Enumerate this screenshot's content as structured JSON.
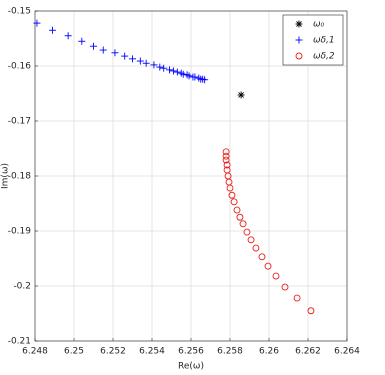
{
  "chart_data": {
    "type": "scatter",
    "xlabel": "Re(ω)",
    "ylabel": "Im(ω)",
    "xlim": [
      6.248,
      6.264
    ],
    "ylim": [
      -0.21,
      -0.15
    ],
    "xticks": [
      6.248,
      6.25,
      6.252,
      6.254,
      6.256,
      6.258,
      6.26,
      6.262,
      6.264
    ],
    "yticks": [
      -0.21,
      -0.2,
      -0.19,
      -0.18,
      -0.17,
      -0.16,
      -0.15
    ],
    "grid": true,
    "legend": "northeast",
    "series": [
      {
        "name": "ω₀",
        "color": "#000000",
        "marker": "asterisk",
        "x": [
          6.25857
        ],
        "y": [
          -0.16527
        ]
      },
      {
        "name": "ωδ,1",
        "color": "#0000ff",
        "marker": "plus",
        "x": [
          6.2481,
          6.2489,
          6.2497,
          6.2504,
          6.251,
          6.2515,
          6.2521,
          6.2526,
          6.253,
          6.2534,
          6.2537,
          6.2541,
          6.2544,
          6.2546,
          6.2549,
          6.2551,
          6.2553,
          6.2555,
          6.2556,
          6.2558,
          6.2559,
          6.2561,
          6.2562,
          6.2564,
          6.2565,
          6.2566,
          6.2567
        ],
        "y": [
          -0.1522,
          -0.1535,
          -0.1545,
          -0.1555,
          -0.1564,
          -0.1571,
          -0.1576,
          -0.1582,
          -0.1587,
          -0.1591,
          -0.1595,
          -0.1598,
          -0.1602,
          -0.1604,
          -0.1607,
          -0.1609,
          -0.1611,
          -0.1613,
          -0.1615,
          -0.1616,
          -0.1618,
          -0.162,
          -0.162,
          -0.1622,
          -0.1624,
          -0.1624,
          -0.1625
        ]
      },
      {
        "name": "ωδ,2",
        "color": "#e8201c",
        "marker": "circle",
        "x": [
          6.2578,
          6.2578,
          6.2578,
          6.25785,
          6.25785,
          6.2579,
          6.25795,
          6.258,
          6.2581,
          6.25821,
          6.25836,
          6.25851,
          6.25867,
          6.25887,
          6.25908,
          6.25933,
          6.25964,
          6.25995,
          6.26036,
          6.26082,
          6.26144,
          6.26215
        ],
        "y": [
          -0.1756,
          -0.1764,
          -0.1771,
          -0.178,
          -0.1789,
          -0.18,
          -0.1811,
          -0.1822,
          -0.1835,
          -0.1847,
          -0.1862,
          -0.1875,
          -0.1887,
          -0.1902,
          -0.1916,
          -0.1931,
          -0.1947,
          -0.1964,
          -0.1982,
          -0.2002,
          -0.2022,
          -0.2045
        ]
      }
    ]
  }
}
